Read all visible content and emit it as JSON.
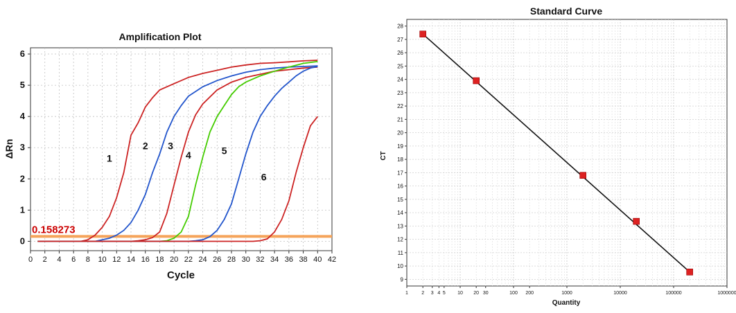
{
  "chart_data": [
    {
      "type": "line",
      "title": "Amplification Plot",
      "xlabel": "Cycle",
      "ylabel": "ΔRn",
      "xlim": [
        0,
        42
      ],
      "ylim": [
        -0.3,
        6.2
      ],
      "x_ticks": [
        0,
        2,
        4,
        6,
        8,
        10,
        12,
        14,
        16,
        18,
        20,
        22,
        24,
        26,
        28,
        30,
        32,
        34,
        36,
        38,
        40,
        42
      ],
      "y_ticks": [
        0,
        1,
        2,
        3,
        4,
        5,
        6
      ],
      "grid": true,
      "threshold": {
        "value": 0.158273,
        "label": "0.158273",
        "color": "#f5a45b",
        "label_color": "#cc0000"
      },
      "series": [
        {
          "name": "1",
          "color": "#cc2222",
          "points": [
            [
              1,
              0
            ],
            [
              7,
              0
            ],
            [
              8,
              0.05
            ],
            [
              9,
              0.2
            ],
            [
              10,
              0.45
            ],
            [
              11,
              0.8
            ],
            [
              12,
              1.4
            ],
            [
              13,
              2.2
            ],
            [
              14,
              3.4
            ],
            [
              15,
              3.8
            ],
            [
              16,
              4.3
            ],
            [
              17,
              4.6
            ],
            [
              18,
              4.85
            ],
            [
              20,
              5.05
            ],
            [
              22,
              5.25
            ],
            [
              24,
              5.38
            ],
            [
              26,
              5.48
            ],
            [
              28,
              5.58
            ],
            [
              30,
              5.65
            ],
            [
              32,
              5.7
            ],
            [
              34,
              5.72
            ],
            [
              36,
              5.75
            ],
            [
              38,
              5.78
            ],
            [
              40,
              5.8
            ]
          ]
        },
        {
          "name": "2",
          "color": "#2255cc",
          "points": [
            [
              1,
              0
            ],
            [
              9,
              0
            ],
            [
              10,
              0.05
            ],
            [
              11,
              0.1
            ],
            [
              12,
              0.2
            ],
            [
              13,
              0.35
            ],
            [
              14,
              0.6
            ],
            [
              15,
              1.0
            ],
            [
              16,
              1.5
            ],
            [
              17,
              2.2
            ],
            [
              18,
              2.8
            ],
            [
              19,
              3.5
            ],
            [
              20,
              4.0
            ],
            [
              21,
              4.35
            ],
            [
              22,
              4.65
            ],
            [
              24,
              4.95
            ],
            [
              26,
              5.15
            ],
            [
              28,
              5.3
            ],
            [
              30,
              5.42
            ],
            [
              32,
              5.5
            ],
            [
              34,
              5.55
            ],
            [
              36,
              5.58
            ],
            [
              38,
              5.6
            ],
            [
              40,
              5.62
            ]
          ]
        },
        {
          "name": "3",
          "color": "#cc2222",
          "points": [
            [
              1,
              0
            ],
            [
              14,
              0
            ],
            [
              15,
              0.02
            ],
            [
              16,
              0.05
            ],
            [
              17,
              0.12
            ],
            [
              18,
              0.3
            ],
            [
              19,
              0.9
            ],
            [
              20,
              1.8
            ],
            [
              21,
              2.7
            ],
            [
              22,
              3.5
            ],
            [
              23,
              4.05
            ],
            [
              24,
              4.4
            ],
            [
              26,
              4.85
            ],
            [
              28,
              5.1
            ],
            [
              30,
              5.25
            ],
            [
              32,
              5.35
            ],
            [
              34,
              5.45
            ],
            [
              36,
              5.5
            ],
            [
              38,
              5.55
            ],
            [
              40,
              5.58
            ]
          ]
        },
        {
          "name": "4",
          "color": "#44cc00",
          "points": [
            [
              1,
              0
            ],
            [
              18,
              0
            ],
            [
              19,
              0.02
            ],
            [
              20,
              0.1
            ],
            [
              21,
              0.3
            ],
            [
              22,
              0.8
            ],
            [
              23,
              1.8
            ],
            [
              24,
              2.7
            ],
            [
              25,
              3.5
            ],
            [
              26,
              4.0
            ],
            [
              27,
              4.35
            ],
            [
              28,
              4.7
            ],
            [
              29,
              4.95
            ],
            [
              30,
              5.1
            ],
            [
              32,
              5.3
            ],
            [
              34,
              5.45
            ],
            [
              36,
              5.58
            ],
            [
              38,
              5.7
            ],
            [
              40,
              5.76
            ]
          ]
        },
        {
          "name": "5",
          "color": "#2255cc",
          "points": [
            [
              1,
              0
            ],
            [
              22,
              0
            ],
            [
              23,
              0.02
            ],
            [
              24,
              0.05
            ],
            [
              25,
              0.15
            ],
            [
              26,
              0.35
            ],
            [
              27,
              0.7
            ],
            [
              28,
              1.2
            ],
            [
              29,
              2.0
            ],
            [
              30,
              2.8
            ],
            [
              31,
              3.5
            ],
            [
              32,
              4.0
            ],
            [
              33,
              4.35
            ],
            [
              34,
              4.65
            ],
            [
              35,
              4.9
            ],
            [
              36,
              5.1
            ],
            [
              37,
              5.3
            ],
            [
              38,
              5.45
            ],
            [
              39,
              5.55
            ],
            [
              40,
              5.6
            ]
          ]
        },
        {
          "name": "6",
          "color": "#cc2222",
          "points": [
            [
              1,
              0
            ],
            [
              31,
              0
            ],
            [
              32,
              0.02
            ],
            [
              33,
              0.08
            ],
            [
              34,
              0.3
            ],
            [
              35,
              0.7
            ],
            [
              36,
              1.3
            ],
            [
              37,
              2.2
            ],
            [
              38,
              3.0
            ],
            [
              39,
              3.7
            ],
            [
              40,
              4.0
            ]
          ]
        }
      ]
    },
    {
      "type": "scatter",
      "title": "Standard Curve",
      "xlabel": "Quantity",
      "ylabel": "CT",
      "x_scale": "log",
      "xlim": [
        1,
        1000000
      ],
      "ylim": [
        8.5,
        28.5
      ],
      "x_tick_labels": [
        "1",
        "2",
        "3",
        "4",
        "5",
        "10",
        "20",
        "30",
        "100",
        "200",
        "1000",
        "10000",
        "100000",
        "1000000"
      ],
      "y_ticks": [
        9,
        10,
        11,
        12,
        13,
        14,
        15,
        16,
        17,
        18,
        19,
        20,
        21,
        22,
        23,
        24,
        25,
        26,
        27,
        28
      ],
      "grid": true,
      "marker_color": "#dd2222",
      "line_color": "#111111",
      "points": [
        {
          "x": 2,
          "y": 27.4
        },
        {
          "x": 20,
          "y": 23.9
        },
        {
          "x": 2000,
          "y": 16.8
        },
        {
          "x": 20000,
          "y": 13.35
        },
        {
          "x": 200000,
          "y": 9.55
        }
      ]
    }
  ]
}
